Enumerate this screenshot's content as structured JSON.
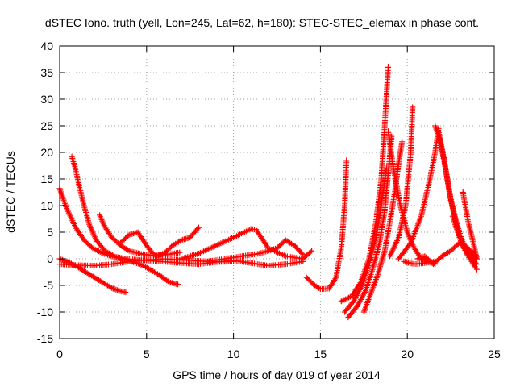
{
  "chart_data": {
    "type": "scatter",
    "title": "dSTEC Iono. truth (yell, Lon=245, Lat=62, h=180): STEC-STEC_elemax in phase cont.",
    "xlabel": "GPS time / hours of day 019 of year 2014",
    "ylabel": "dSTEC  / TECUs",
    "xlim": [
      0,
      25
    ],
    "ylim": [
      -15,
      40
    ],
    "xticks": [
      "0",
      "5",
      "10",
      "15",
      "20",
      "25"
    ],
    "yticks": [
      "-15",
      "-10",
      "-5",
      "0",
      "5",
      "10",
      "15",
      "20",
      "25",
      "30",
      "35",
      "40"
    ],
    "grid": true,
    "legend": "none",
    "marker": "plus",
    "series_color": "#ff0000",
    "series": [
      {
        "x": [
          0.0,
          0.4,
          0.9,
          1.4,
          1.9,
          2.5,
          3.2,
          3.9,
          4.6,
          5.2,
          5.8,
          6.3,
          6.8
        ],
        "y": [
          13.2,
          9.5,
          6.0,
          3.5,
          2.0,
          1.0,
          0.3,
          -0.3,
          -1.0,
          -2.0,
          -3.2,
          -4.4,
          -4.8
        ]
      },
      {
        "x": [
          0.7,
          0.9,
          1.1,
          1.4,
          1.7,
          2.1,
          2.6,
          3.2,
          3.8,
          4.5,
          5.3,
          6.2,
          7.0,
          8.0
        ],
        "y": [
          19.2,
          17.0,
          14.0,
          10.0,
          6.5,
          3.5,
          1.5,
          0.4,
          0.0,
          -0.2,
          -0.4,
          -0.6,
          -0.8,
          -1.0
        ]
      },
      {
        "x": [
          0.0,
          0.5,
          1.0,
          1.5,
          2.0,
          2.5,
          3.0,
          3.4,
          3.8
        ],
        "y": [
          0.0,
          -0.6,
          -1.5,
          -2.5,
          -3.5,
          -4.5,
          -5.5,
          -6.0,
          -6.3
        ]
      },
      {
        "x": [
          2.3,
          2.6,
          3.0,
          3.5,
          4.0,
          4.7,
          5.5,
          6.2,
          6.9
        ],
        "y": [
          8.2,
          6.0,
          4.0,
          2.5,
          1.5,
          0.9,
          0.6,
          0.8,
          1.2
        ]
      },
      {
        "x": [
          0.0,
          1.0,
          2.0,
          3.0,
          4.0,
          5.0,
          6.0,
          7.0,
          8.0,
          9.0,
          10.0
        ],
        "y": [
          -1.0,
          -1.2,
          -1.3,
          -1.0,
          -0.5,
          -0.2,
          0.0,
          -0.2,
          -0.4,
          -0.6,
          -0.5
        ]
      },
      {
        "x": [
          3.5,
          4.0,
          4.5,
          5.0,
          5.5,
          6.0,
          6.5,
          7.0,
          7.5,
          8.0
        ],
        "y": [
          3.0,
          4.5,
          5.0,
          2.5,
          0.5,
          1.0,
          2.5,
          3.5,
          4.0,
          5.9
        ]
      },
      {
        "x": [
          7.0,
          8.0,
          9.0,
          10.0,
          11.0,
          11.3,
          12.0,
          13.0,
          14.0,
          14.5
        ],
        "y": [
          0.0,
          1.0,
          2.5,
          4.0,
          5.6,
          5.5,
          2.0,
          0.5,
          0.0,
          1.5
        ]
      },
      {
        "x": [
          8.5,
          9.5,
          10.5,
          11.5,
          12.5,
          13.0,
          13.5,
          14.0
        ],
        "y": [
          -0.5,
          0.0,
          0.5,
          1.0,
          2.0,
          3.5,
          2.5,
          0.8
        ]
      },
      {
        "x": [
          8.0,
          9.0,
          10.0,
          11.0,
          12.0,
          13.0,
          14.0
        ],
        "y": [
          -1.0,
          -0.6,
          -0.3,
          -0.8,
          -1.3,
          -1.0,
          -0.5
        ]
      },
      {
        "x": [
          14.2,
          14.6,
          15.0,
          15.5,
          15.9,
          16.2,
          16.4,
          16.5
        ],
        "y": [
          -3.5,
          -4.8,
          -5.7,
          -5.6,
          -3.5,
          2.0,
          10.0,
          18.5
        ]
      },
      {
        "x": [
          16.2,
          16.8,
          17.3,
          17.8,
          18.2,
          18.5,
          18.7,
          18.9
        ],
        "y": [
          -8.0,
          -7.0,
          -4.5,
          0.0,
          7.0,
          15.0,
          25.0,
          36.0
        ]
      },
      {
        "x": [
          16.6,
          17.1,
          17.6,
          18.0,
          18.4,
          18.7,
          18.9,
          19.1
        ],
        "y": [
          -11.0,
          -9.0,
          -6.0,
          -2.0,
          3.0,
          9.0,
          16.0,
          23.0
        ]
      },
      {
        "x": [
          16.4,
          16.9,
          17.4,
          17.8,
          18.2,
          18.5,
          18.8
        ],
        "y": [
          -10.0,
          -8.0,
          -5.0,
          -1.0,
          4.0,
          10.0,
          17.0
        ]
      },
      {
        "x": [
          17.5,
          17.9,
          18.3,
          18.7,
          19.0,
          19.3,
          19.5,
          19.7
        ],
        "y": [
          -10.0,
          -6.5,
          -3.0,
          1.5,
          7.0,
          13.0,
          18.0,
          22.0
        ]
      },
      {
        "x": [
          19.0,
          19.5,
          19.9,
          20.2,
          20.3
        ],
        "y": [
          0.5,
          4.0,
          10.0,
          20.0,
          28.5
        ]
      },
      {
        "x": [
          18.9,
          19.2,
          19.6,
          20.0,
          20.4,
          20.8,
          21.2,
          21.6
        ],
        "y": [
          24.0,
          17.0,
          10.0,
          5.0,
          2.0,
          0.0,
          -0.5,
          -1.0
        ]
      },
      {
        "x": [
          19.5,
          20.2,
          20.8,
          21.3,
          21.6,
          21.8
        ],
        "y": [
          0.0,
          3.0,
          8.0,
          15.0,
          20.0,
          24.5
        ]
      },
      {
        "x": [
          21.6,
          21.9,
          22.2,
          22.5,
          22.9,
          23.3,
          23.7,
          24.0
        ],
        "y": [
          25.0,
          22.0,
          17.0,
          11.0,
          6.0,
          2.0,
          0.0,
          -1.0
        ]
      },
      {
        "x": [
          21.8,
          22.1,
          22.4,
          22.7,
          23.0,
          23.4,
          23.8,
          24.0
        ],
        "y": [
          24.0,
          19.0,
          13.0,
          8.0,
          4.0,
          1.0,
          -1.0,
          -2.0
        ]
      },
      {
        "x": [
          22.6,
          22.9,
          23.2,
          23.5,
          23.8,
          24.0
        ],
        "y": [
          8.0,
          5.0,
          3.0,
          1.5,
          0.5,
          0.0
        ]
      },
      {
        "x": [
          23.2,
          23.5,
          23.8,
          24.0
        ],
        "y": [
          12.5,
          7.0,
          3.0,
          0.0
        ]
      },
      {
        "x": [
          20.6,
          21.0,
          21.5,
          22.0,
          22.5,
          23.0,
          23.5,
          24.0
        ],
        "y": [
          0.0,
          0.5,
          -1.0,
          0.5,
          1.5,
          3.0,
          2.0,
          0.5
        ]
      },
      {
        "x": [
          19.8,
          20.4,
          21.0,
          21.6
        ],
        "y": [
          -0.5,
          -1.0,
          -0.8,
          -0.5
        ]
      }
    ]
  }
}
